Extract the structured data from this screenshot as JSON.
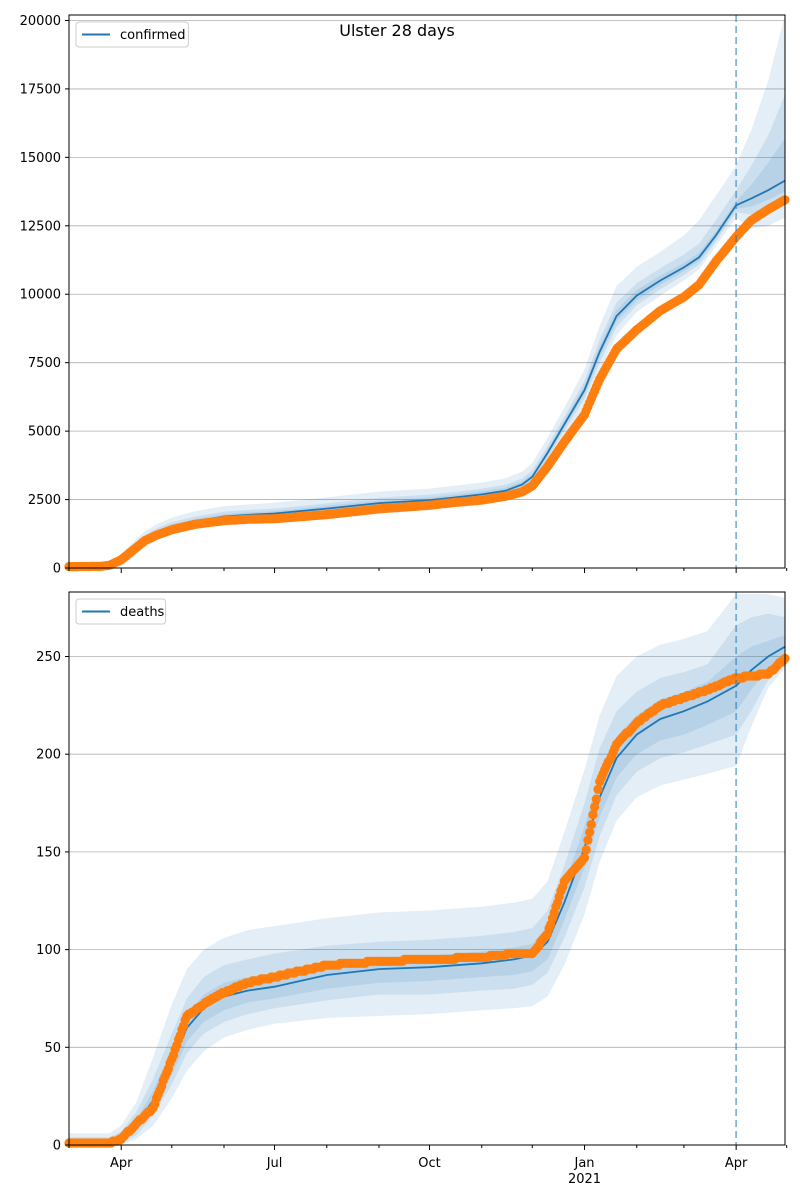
{
  "figure": {
    "title": "Ulster 28 days"
  },
  "chart_data": [
    {
      "type": "line",
      "title": "",
      "xlabel": "",
      "ylabel": "",
      "x_range": [
        "2020-03-01",
        "2021-04-30"
      ],
      "ylim": [
        0,
        20200
      ],
      "yticks": [
        0,
        2500,
        5000,
        7500,
        10000,
        12500,
        15000,
        17500,
        20000
      ],
      "grid": "horizontal",
      "legend": "top-left",
      "forecast_start": "2021-04-01",
      "series": [
        {
          "name": "confirmed",
          "kind": "model-median",
          "color": "#1f77b4",
          "x": [
            "2020-03-01",
            "2020-03-20",
            "2020-03-25",
            "2020-04-01",
            "2020-04-08",
            "2020-04-15",
            "2020-04-22",
            "2020-05-01",
            "2020-05-15",
            "2020-06-01",
            "2020-06-15",
            "2020-07-01",
            "2020-08-01",
            "2020-09-01",
            "2020-10-01",
            "2020-10-15",
            "2020-11-01",
            "2020-11-15",
            "2020-11-25",
            "2020-12-01",
            "2020-12-10",
            "2020-12-20",
            "2021-01-01",
            "2021-01-10",
            "2021-01-20",
            "2021-02-01",
            "2021-02-15",
            "2021-03-01",
            "2021-03-10",
            "2021-03-20",
            "2021-04-01",
            "2021-04-10",
            "2021-04-20",
            "2021-04-30"
          ],
          "y": [
            0,
            0,
            30,
            250,
            620,
            1030,
            1280,
            1500,
            1700,
            1880,
            1940,
            1990,
            2170,
            2370,
            2480,
            2570,
            2690,
            2820,
            3050,
            3330,
            4200,
            5250,
            6500,
            7900,
            9200,
            9950,
            10500,
            10980,
            11350,
            12150,
            13250,
            13500,
            13800,
            14150
          ]
        },
        {
          "name": "",
          "kind": "observed",
          "color": "#ff7f0e",
          "x": [
            "2020-03-01",
            "2020-03-20",
            "2020-03-25",
            "2020-04-01",
            "2020-04-08",
            "2020-04-15",
            "2020-04-22",
            "2020-05-01",
            "2020-05-15",
            "2020-06-01",
            "2020-06-15",
            "2020-07-01",
            "2020-08-01",
            "2020-09-01",
            "2020-10-01",
            "2020-10-15",
            "2020-11-01",
            "2020-11-15",
            "2020-11-25",
            "2020-12-01",
            "2020-12-10",
            "2020-12-20",
            "2021-01-01",
            "2021-01-10",
            "2021-01-20",
            "2021-02-01",
            "2021-02-15",
            "2021-03-01",
            "2021-03-10",
            "2021-03-20",
            "2021-04-01",
            "2021-04-10",
            "2021-04-20",
            "2021-04-30"
          ],
          "y": [
            50,
            60,
            100,
            300,
            650,
            1000,
            1200,
            1400,
            1600,
            1730,
            1780,
            1800,
            1950,
            2160,
            2290,
            2390,
            2480,
            2620,
            2780,
            3000,
            3700,
            4600,
            5600,
            6900,
            8000,
            8700,
            9400,
            9900,
            10350,
            11200,
            12100,
            12700,
            13100,
            13450
          ]
        }
      ],
      "uncertainty_bands": [
        {
          "level": "outer",
          "lower": [
            0,
            0,
            0,
            60,
            380,
            770,
            1000,
            1220,
            1420,
            1600,
            1660,
            1700,
            1860,
            2050,
            2160,
            2240,
            2350,
            2470,
            2700,
            2980,
            3800,
            4800,
            5900,
            7200,
            8500,
            9350,
            9950,
            10500,
            10900,
            11750,
            12800,
            12400,
            12500,
            12800
          ],
          "upper": [
            160,
            160,
            210,
            520,
            950,
            1340,
            1600,
            1840,
            2080,
            2260,
            2320,
            2380,
            2580,
            2790,
            2900,
            3000,
            3120,
            3280,
            3520,
            3840,
            4750,
            5850,
            7250,
            8850,
            10300,
            11000,
            11550,
            12150,
            12700,
            13600,
            14700,
            16000,
            17800,
            20200
          ]
        },
        {
          "level": "middle",
          "lower": [
            0,
            0,
            0,
            140,
            480,
            880,
            1120,
            1340,
            1540,
            1720,
            1780,
            1820,
            1990,
            2180,
            2290,
            2380,
            2490,
            2620,
            2850,
            3130,
            3990,
            5000,
            6180,
            7500,
            8800,
            9600,
            10180,
            10700,
            11080,
            11920,
            13000,
            12900,
            13100,
            13400
          ],
          "upper": [
            90,
            90,
            120,
            400,
            780,
            1200,
            1450,
            1680,
            1880,
            2060,
            2120,
            2170,
            2360,
            2570,
            2680,
            2770,
            2900,
            3040,
            3280,
            3580,
            4460,
            5520,
            6850,
            8350,
            9700,
            10400,
            10950,
            11450,
            11850,
            12700,
            13800,
            14700,
            15800,
            17300
          ]
        },
        {
          "level": "inner",
          "lower": [
            0,
            0,
            10,
            200,
            560,
            960,
            1200,
            1420,
            1620,
            1800,
            1860,
            1900,
            2080,
            2280,
            2390,
            2480,
            2590,
            2720,
            2950,
            3230,
            4100,
            5130,
            6340,
            7700,
            9000,
            9770,
            10340,
            10840,
            11210,
            12030,
            13120,
            13200,
            13450,
            13750
          ],
          "upper": [
            40,
            40,
            60,
            310,
            690,
            1110,
            1360,
            1590,
            1790,
            1970,
            2030,
            2080,
            2270,
            2470,
            2580,
            2670,
            2800,
            2930,
            3160,
            3440,
            4320,
            5380,
            6680,
            8120,
            9430,
            10150,
            10680,
            11140,
            11520,
            12300,
            13400,
            14000,
            14800,
            15700
          ]
        }
      ]
    },
    {
      "type": "line",
      "title": "",
      "xlabel": "",
      "ylabel": "",
      "x_range": [
        "2020-03-01",
        "2021-04-30"
      ],
      "ylim": [
        0,
        283
      ],
      "yticks": [
        0,
        50,
        100,
        150,
        200,
        250
      ],
      "xticks": [
        "Apr",
        "Jul",
        "Oct",
        "Jan",
        "Apr"
      ],
      "xtick_dates": [
        "2020-04-01",
        "2020-07-01",
        "2020-10-01",
        "2021-01-01",
        "2021-04-01"
      ],
      "xtick_secondary": {
        "under": "Jan",
        "label": "2021"
      },
      "grid": "horizontal",
      "legend": "top-left",
      "forecast_start": "2021-04-01",
      "series": [
        {
          "name": "deaths",
          "kind": "model-median",
          "color": "#1f77b4",
          "x": [
            "2020-03-01",
            "2020-03-25",
            "2020-04-01",
            "2020-04-10",
            "2020-04-20",
            "2020-05-01",
            "2020-05-10",
            "2020-05-20",
            "2020-06-01",
            "2020-06-15",
            "2020-07-01",
            "2020-08-01",
            "2020-09-01",
            "2020-10-01",
            "2020-11-01",
            "2020-11-20",
            "2020-12-01",
            "2020-12-10",
            "2020-12-20",
            "2021-01-01",
            "2021-01-10",
            "2021-01-20",
            "2021-02-01",
            "2021-02-15",
            "2021-03-01",
            "2021-03-15",
            "2021-04-01",
            "2021-04-10",
            "2021-04-20",
            "2021-04-30"
          ],
          "y": [
            0,
            0,
            3,
            10,
            23,
            42,
            60,
            70,
            76,
            79,
            81,
            87,
            90,
            91,
            93,
            95,
            97,
            104,
            124,
            152,
            178,
            198,
            210,
            218,
            222,
            227,
            235,
            243,
            250,
            255
          ]
        },
        {
          "name": "",
          "kind": "observed",
          "color": "#ff7f0e",
          "x": [
            "2020-03-01",
            "2020-03-25",
            "2020-04-01",
            "2020-04-10",
            "2020-04-20",
            "2020-05-01",
            "2020-05-10",
            "2020-05-20",
            "2020-06-01",
            "2020-06-15",
            "2020-07-01",
            "2020-08-01",
            "2020-09-01",
            "2020-10-01",
            "2020-11-01",
            "2020-11-20",
            "2020-12-01",
            "2020-12-10",
            "2020-12-20",
            "2021-01-01",
            "2021-01-10",
            "2021-01-20",
            "2021-02-01",
            "2021-02-15",
            "2021-03-01",
            "2021-03-15",
            "2021-04-01",
            "2021-04-10",
            "2021-04-20",
            "2021-04-30"
          ],
          "y": [
            1,
            1,
            3,
            11,
            19,
            44,
            66,
            72,
            78,
            83,
            86,
            92,
            94,
            95,
            96,
            98,
            98,
            108,
            135,
            147,
            186,
            205,
            216,
            225,
            229,
            233,
            239,
            240,
            241,
            249
          ]
        }
      ],
      "uncertainty_bands": [
        {
          "level": "outer",
          "lower": [
            0,
            0,
            0,
            3,
            10,
            24,
            38,
            48,
            55,
            59,
            62,
            65,
            66,
            67,
            69,
            70,
            71,
            76,
            92,
            118,
            145,
            166,
            178,
            184,
            187,
            190,
            194,
            214,
            234,
            244
          ],
          "upper": [
            6,
            6,
            10,
            22,
            45,
            72,
            90,
            100,
            106,
            110,
            112,
            116,
            119,
            120,
            122,
            124,
            126,
            135,
            160,
            192,
            220,
            240,
            250,
            256,
            259,
            263,
            282,
            282,
            282,
            280
          ]
        },
        {
          "level": "middle",
          "lower": [
            0,
            0,
            1,
            5,
            15,
            31,
            47,
            57,
            63,
            67,
            70,
            74,
            77,
            77,
            79,
            80,
            82,
            88,
            106,
            132,
            158,
            179,
            191,
            198,
            201,
            205,
            210,
            222,
            238,
            246
          ],
          "upper": [
            4,
            4,
            7,
            17,
            34,
            57,
            75,
            86,
            92,
            95,
            98,
            102,
            104,
            105,
            107,
            109,
            111,
            120,
            143,
            175,
            203,
            222,
            232,
            239,
            242,
            246,
            266,
            270,
            272,
            270
          ]
        },
        {
          "level": "inner",
          "lower": [
            0,
            0,
            2,
            7,
            18,
            36,
            53,
            63,
            69,
            73,
            75,
            80,
            83,
            84,
            86,
            87,
            89,
            95,
            115,
            142,
            168,
            188,
            200,
            207,
            210,
            215,
            222,
            233,
            244,
            250
          ],
          "upper": [
            2,
            2,
            5,
            13,
            28,
            49,
            67,
            77,
            83,
            86,
            88,
            93,
            96,
            97,
            99,
            101,
            103,
            112,
            133,
            163,
            190,
            209,
            220,
            228,
            232,
            237,
            250,
            255,
            258,
            261
          ]
        }
      ]
    }
  ]
}
